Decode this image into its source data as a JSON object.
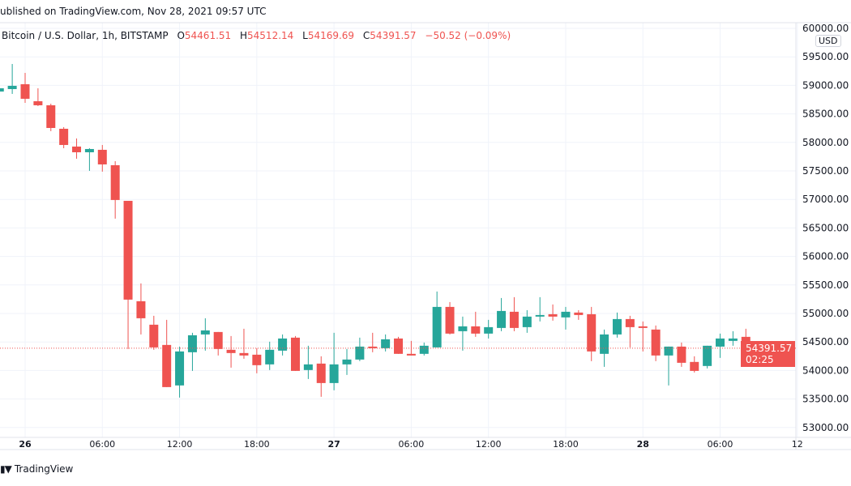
{
  "header": {
    "published": "ublished on TradingView.com, Nov 28, 2021 09:57 UTC"
  },
  "legend": {
    "symbol": "Bitcoin / U.S. Dollar, 1h, BITSTAMP",
    "open_label": "O",
    "open": "54461.51",
    "high_label": "H",
    "high": "54512.14",
    "low_label": "L",
    "low": "54169.69",
    "close_label": "C",
    "close": "54391.57",
    "change": "−50.52 (−0.09%)"
  },
  "price_axis": {
    "currency": "USD",
    "ticks": [
      "60000.00",
      "59500.00",
      "59000.00",
      "58500.00",
      "58000.00",
      "57500.00",
      "57000.00",
      "56500.00",
      "56000.00",
      "55500.00",
      "55000.00",
      "54500.00",
      "54000.00",
      "53500.00",
      "53000.00"
    ],
    "last_price": "54391.57",
    "countdown": "02:25"
  },
  "time_axis": {
    "ticks": [
      {
        "label": "26",
        "t": "2021-11-26T00:00",
        "bold": true
      },
      {
        "label": "06:00",
        "t": "2021-11-26T06:00"
      },
      {
        "label": "12:00",
        "t": "2021-11-26T12:00"
      },
      {
        "label": "18:00",
        "t": "2021-11-26T18:00"
      },
      {
        "label": "27",
        "t": "2021-11-27T00:00",
        "bold": true
      },
      {
        "label": "06:00",
        "t": "2021-11-27T06:00"
      },
      {
        "label": "12:00",
        "t": "2021-11-27T12:00"
      },
      {
        "label": "18:00",
        "t": "2021-11-27T18:00"
      },
      {
        "label": "28",
        "t": "2021-11-28T00:00",
        "bold": true
      },
      {
        "label": "06:00",
        "t": "2021-11-28T06:00"
      },
      {
        "label": "12",
        "t": "2021-11-28T12:00"
      }
    ]
  },
  "footer": {
    "brand": "TradingView",
    "logo_text": "17"
  },
  "colors": {
    "up": "#26a69a",
    "down": "#ef5350",
    "grid": "#f0f3fa",
    "text": "#131722"
  },
  "chart_data": {
    "type": "candlestick",
    "interval": "1h",
    "ylim": [
      52900,
      60100
    ],
    "grid": true,
    "columns": [
      "time",
      "open",
      "high",
      "low",
      "close"
    ],
    "candles": [
      [
        "2021-11-25T22:00",
        58892,
        58978,
        58878,
        58949
      ],
      [
        "2021-11-25T23:00",
        58935,
        59375,
        58850,
        58992
      ],
      [
        "2021-11-26T00:00",
        59020,
        59219,
        58694,
        58765
      ],
      [
        "2021-11-26T01:00",
        58722,
        58949,
        58637,
        58651
      ],
      [
        "2021-11-26T02:00",
        58651,
        58679,
        58197,
        58253
      ],
      [
        "2021-11-26T03:00",
        58239,
        58268,
        57898,
        57955
      ],
      [
        "2021-11-26T04:00",
        57927,
        58069,
        57714,
        57827
      ],
      [
        "2021-11-26T05:00",
        57827,
        57898,
        57501,
        57884
      ],
      [
        "2021-11-26T06:00",
        57870,
        57955,
        57487,
        57614
      ],
      [
        "2021-11-26T07:00",
        57600,
        57671,
        56663,
        56990
      ],
      [
        "2021-11-26T08:00",
        56975,
        56975,
        54377,
        55243
      ],
      [
        "2021-11-26T09:00",
        55215,
        55527,
        54632,
        54916
      ],
      [
        "2021-11-26T10:00",
        54803,
        54959,
        54363,
        54405
      ],
      [
        "2021-11-26T11:00",
        54448,
        54888,
        53709,
        53709
      ],
      [
        "2021-11-26T12:00",
        53738,
        54419,
        53525,
        54334
      ],
      [
        "2021-11-26T13:00",
        54320,
        54661,
        53993,
        54618
      ],
      [
        "2021-11-26T14:00",
        54632,
        54916,
        54348,
        54703
      ],
      [
        "2021-11-26T15:00",
        54675,
        54675,
        54263,
        54377
      ],
      [
        "2021-11-26T16:00",
        54363,
        54604,
        54050,
        54306
      ],
      [
        "2021-11-26T17:00",
        54306,
        54732,
        54206,
        54263
      ],
      [
        "2021-11-26T18:00",
        54277,
        54391,
        53951,
        54093
      ],
      [
        "2021-11-26T19:00",
        54107,
        54505,
        54008,
        54363
      ],
      [
        "2021-11-26T20:00",
        54348,
        54632,
        54263,
        54561
      ],
      [
        "2021-11-26T21:00",
        54576,
        54604,
        53993,
        53993
      ],
      [
        "2021-11-26T22:00",
        54008,
        54434,
        53851,
        54107
      ],
      [
        "2021-11-26T23:00",
        54121,
        54249,
        53539,
        53780
      ],
      [
        "2021-11-27T00:00",
        53780,
        54661,
        53653,
        54107
      ],
      [
        "2021-11-27T01:00",
        54107,
        54377,
        53922,
        54192
      ],
      [
        "2021-11-27T02:00",
        54192,
        54576,
        54164,
        54419
      ],
      [
        "2021-11-27T03:00",
        54419,
        54661,
        54320,
        54391
      ],
      [
        "2021-11-27T04:00",
        54391,
        54632,
        54334,
        54547
      ],
      [
        "2021-11-27T05:00",
        54561,
        54590,
        54292,
        54292
      ],
      [
        "2021-11-27T06:00",
        54292,
        54519,
        54263,
        54263
      ],
      [
        "2021-11-27T07:00",
        54292,
        54490,
        54263,
        54434
      ],
      [
        "2021-11-27T08:00",
        54405,
        55385,
        54405,
        55115
      ],
      [
        "2021-11-27T09:00",
        55115,
        55200,
        54632,
        54647
      ],
      [
        "2021-11-27T10:00",
        54689,
        54945,
        54348,
        54774
      ],
      [
        "2021-11-27T11:00",
        54774,
        55030,
        54590,
        54647
      ],
      [
        "2021-11-27T12:00",
        54647,
        54888,
        54561,
        54760
      ],
      [
        "2021-11-27T13:00",
        54746,
        55271,
        54689,
        55044
      ],
      [
        "2021-11-27T14:00",
        55030,
        55286,
        54689,
        54746
      ],
      [
        "2021-11-27T15:00",
        54760,
        55058,
        54661,
        54945
      ],
      [
        "2021-11-27T16:00",
        54945,
        55286,
        54860,
        54973
      ],
      [
        "2021-11-27T17:00",
        54987,
        55158,
        54874,
        54945
      ],
      [
        "2021-11-27T18:00",
        54931,
        55115,
        54718,
        55030
      ],
      [
        "2021-11-27T19:00",
        55016,
        55058,
        54888,
        54973
      ],
      [
        "2021-11-27T20:00",
        54987,
        55115,
        54164,
        54334
      ],
      [
        "2021-11-27T21:00",
        54292,
        54718,
        54064,
        54632
      ],
      [
        "2021-11-27T22:00",
        54632,
        55016,
        54576,
        54902
      ],
      [
        "2021-11-27T23:00",
        54902,
        54959,
        54405,
        54760
      ],
      [
        "2021-11-28T00:00",
        54774,
        54860,
        54334,
        54746
      ],
      [
        "2021-11-28T01:00",
        54718,
        54789,
        54164,
        54263
      ],
      [
        "2021-11-28T02:00",
        54263,
        54419,
        53738,
        54419
      ],
      [
        "2021-11-28T03:00",
        54419,
        54490,
        54064,
        54135
      ],
      [
        "2021-11-28T04:00",
        54150,
        54249,
        53965,
        53993
      ],
      [
        "2021-11-28T05:00",
        54079,
        54434,
        54036,
        54434
      ],
      [
        "2021-11-28T06:00",
        54419,
        54647,
        54221,
        54561
      ],
      [
        "2021-11-28T07:00",
        54519,
        54689,
        54434,
        54561
      ],
      [
        "2021-11-28T08:00",
        54590,
        54732,
        54292,
        54434
      ],
      [
        "2021-11-28T09:00",
        54461.51,
        54512.14,
        54169.69,
        54391.57
      ]
    ]
  }
}
